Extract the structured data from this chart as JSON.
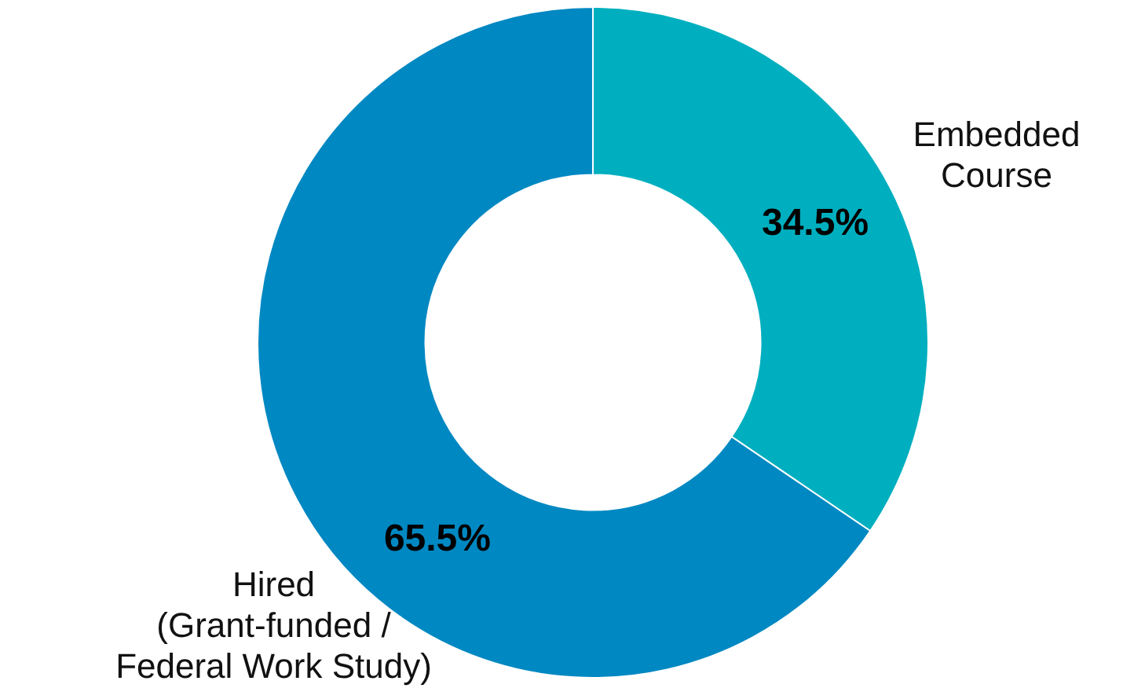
{
  "chart_data": {
    "type": "donut",
    "categories": [
      "Embedded\nCourse",
      "Hired\n(Grant-funded /\nFederal Work Study)"
    ],
    "values": [
      34.5,
      65.5
    ],
    "colors": [
      "#00afbf",
      "#0088c2"
    ],
    "value_labels": [
      "34.5%",
      "65.5%"
    ],
    "legend": false
  }
}
